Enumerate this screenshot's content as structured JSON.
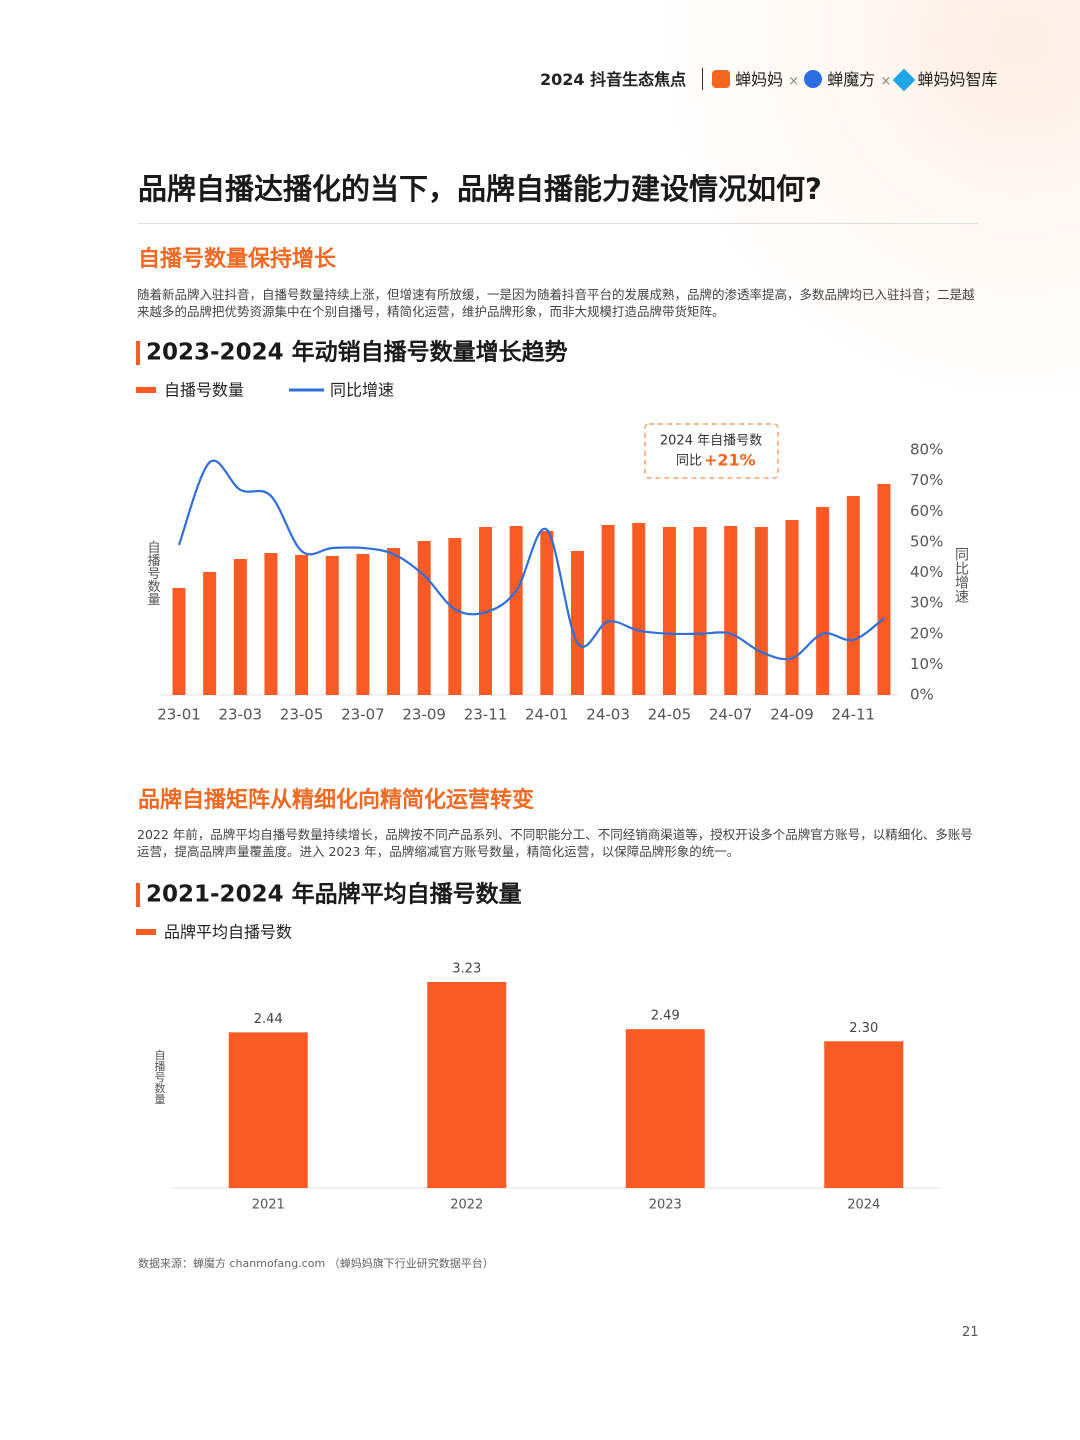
{
  "header": {
    "report": "2024 抖音生态焦点",
    "brands": [
      "蝉妈妈",
      "蝉魔方",
      "蝉妈妈智库"
    ],
    "joiner": "×"
  },
  "title": "品牌自播达播化的当下，品牌自播能力建设情况如何?",
  "section1": {
    "heading": "自播号数量保持增长",
    "text": "随着新品牌入驻抖音，自播号数量持续上涨，但增速有所放缓，一是因为随着抖音平台的发展成熟，品牌的渗透率提高，多数品牌均已入驻抖音；二是越来越多的品牌把优势资源集中在个别自播号，精简化运营，维护品牌形象，而非大规模打造品牌带货矩阵。"
  },
  "section2": {
    "heading": "品牌自播矩阵从精细化向精简化运营转变",
    "text": "2022 年前，品牌平均自播号数量持续增长，品牌按不同产品系列、不同职能分工、不同经销商渠道等，授权开设多个品牌官方账号，以精细化、多账号运营，提高品牌声量覆盖度。进入 2023 年，品牌缩减官方账号数量，精简化运营，以保障品牌形象的统一。"
  },
  "chart_data": [
    {
      "type": "combo",
      "title": "2023-2024 年动销自播号数量增长趋势",
      "categories": [
        "23-01",
        null,
        "23-03",
        null,
        "23-05",
        null,
        "23-07",
        null,
        "23-09",
        null,
        "23-11",
        null,
        "24-01",
        null,
        "24-03",
        null,
        "24-05",
        null,
        "24-07",
        null,
        "24-09",
        null,
        "24-11",
        null
      ],
      "series": [
        {
          "name": "自播号数量",
          "color": "#fa5a24",
          "values": [
            107,
            123,
            136,
            142,
            140,
            139,
            141,
            147,
            154,
            157,
            168,
            169,
            164,
            144,
            170,
            172,
            168,
            168,
            169,
            168,
            175,
            188,
            199,
            211
          ]
        },
        {
          "name": "同比增速",
          "color": "#2f6fdc",
          "axis": "y2",
          "values": [
            49,
            76,
            67,
            65,
            47,
            48,
            48,
            46,
            39,
            28,
            27,
            34,
            54,
            17,
            24,
            21,
            20,
            20,
            20,
            14,
            12,
            20,
            18,
            25
          ]
        }
      ],
      "ylim": [
        0,
        245
      ],
      "y2lim": [
        0,
        80
      ],
      "y2ticks": [
        {
          "value": 0,
          "label": "0%"
        },
        {
          "value": 10,
          "label": "10%"
        },
        {
          "value": 20,
          "label": "20%"
        },
        {
          "value": 30,
          "label": "30%"
        },
        {
          "value": 40,
          "label": "40%"
        },
        {
          "value": 50,
          "label": "50%"
        },
        {
          "value": 60,
          "label": "60%"
        },
        {
          "value": 70,
          "label": "70%"
        },
        {
          "value": 80,
          "label": "80%"
        }
      ],
      "ylabel": "自播号数量",
      "y2label": "同比增速",
      "annotations": [
        "2024 年自播号数",
        "同比",
        "+21%"
      ]
    },
    {
      "type": "bar",
      "title": "2021-2024 年品牌平均自播号数量",
      "categories": [
        "2021",
        "2022",
        "2023",
        "2024"
      ],
      "series": [
        {
          "name": "品牌平均自播号数",
          "color": "#fa5a24",
          "values": [
            2.44,
            3.23,
            2.49,
            2.3
          ],
          "value_labels": [
            "2.44",
            "3.23",
            "2.49",
            "2.30"
          ]
        }
      ],
      "ylim": [
        0,
        3.7
      ],
      "ylabel": "自播号数量"
    }
  ],
  "footer": {
    "source": "数据来源：蝉魔方 chanmofang.com （蝉妈妈旗下行业研究数据平台）",
    "page": "21"
  }
}
